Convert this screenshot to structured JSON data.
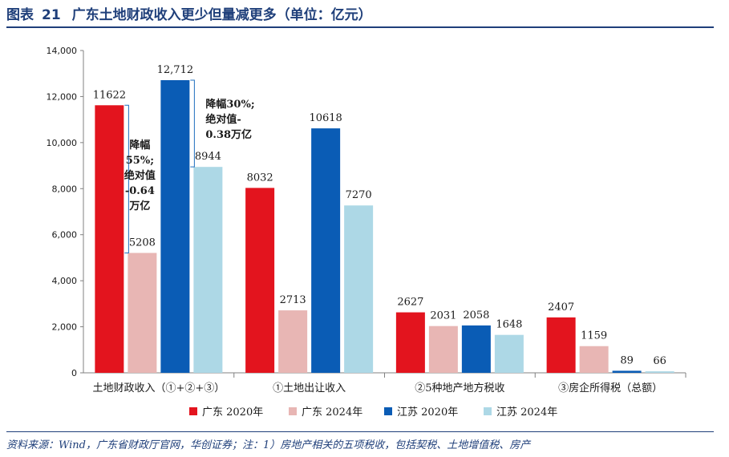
{
  "header": {
    "figure_label": "图表",
    "figure_number": "21",
    "title": "广东土地财政收入更少但量减更多（单位：亿元）"
  },
  "footer": {
    "source": "资料来源：Wind，广东省财政厅官网，华创证券；注：1）房地产相关的五项税收，包括契税、土地增值税、房产"
  },
  "chart_data": {
    "type": "bar",
    "categories": [
      "土地财政收入（①+②+③）",
      "①土地出让收入",
      "②5种地产地方税收",
      "③房企所得税（总额）"
    ],
    "series": [
      {
        "name": "广东 2020年",
        "color": "#e3141e",
        "values": [
          11622,
          8032,
          2627,
          2407
        ],
        "labels": [
          "11622",
          "8032",
          "2627",
          "2407"
        ]
      },
      {
        "name": "广东 2024年",
        "color": "#e8b6b4",
        "values": [
          5208,
          2713,
          2031,
          1159
        ],
        "labels": [
          "5208",
          "2713",
          "2031",
          "1159"
        ]
      },
      {
        "name": "江苏 2020年",
        "color": "#0a5cb5",
        "values": [
          12712,
          10618,
          2058,
          89
        ],
        "labels": [
          "12,712",
          "10618",
          "2058",
          "89"
        ]
      },
      {
        "name": "江苏 2024年",
        "color": "#add8e6",
        "values": [
          8944,
          7270,
          1648,
          66
        ],
        "labels": [
          "8944",
          "7270",
          "1648",
          "66"
        ]
      }
    ],
    "ylim": [
      0,
      14000
    ],
    "yticks": [
      "0",
      "2,000",
      "4,000",
      "6,000",
      "8,000",
      "10,000",
      "12,000",
      "14,000"
    ],
    "legend_position": "bottom",
    "grid": false,
    "annotations": [
      {
        "target": "广东",
        "color": "#e3141e",
        "lines": [
          "降幅",
          "55%;",
          "绝对值",
          "-0.64",
          "万亿"
        ]
      },
      {
        "target": "江苏",
        "color": "#1f7ec7",
        "lines": [
          "降幅30%;",
          "绝对值-",
          "0.38万亿"
        ]
      }
    ]
  }
}
